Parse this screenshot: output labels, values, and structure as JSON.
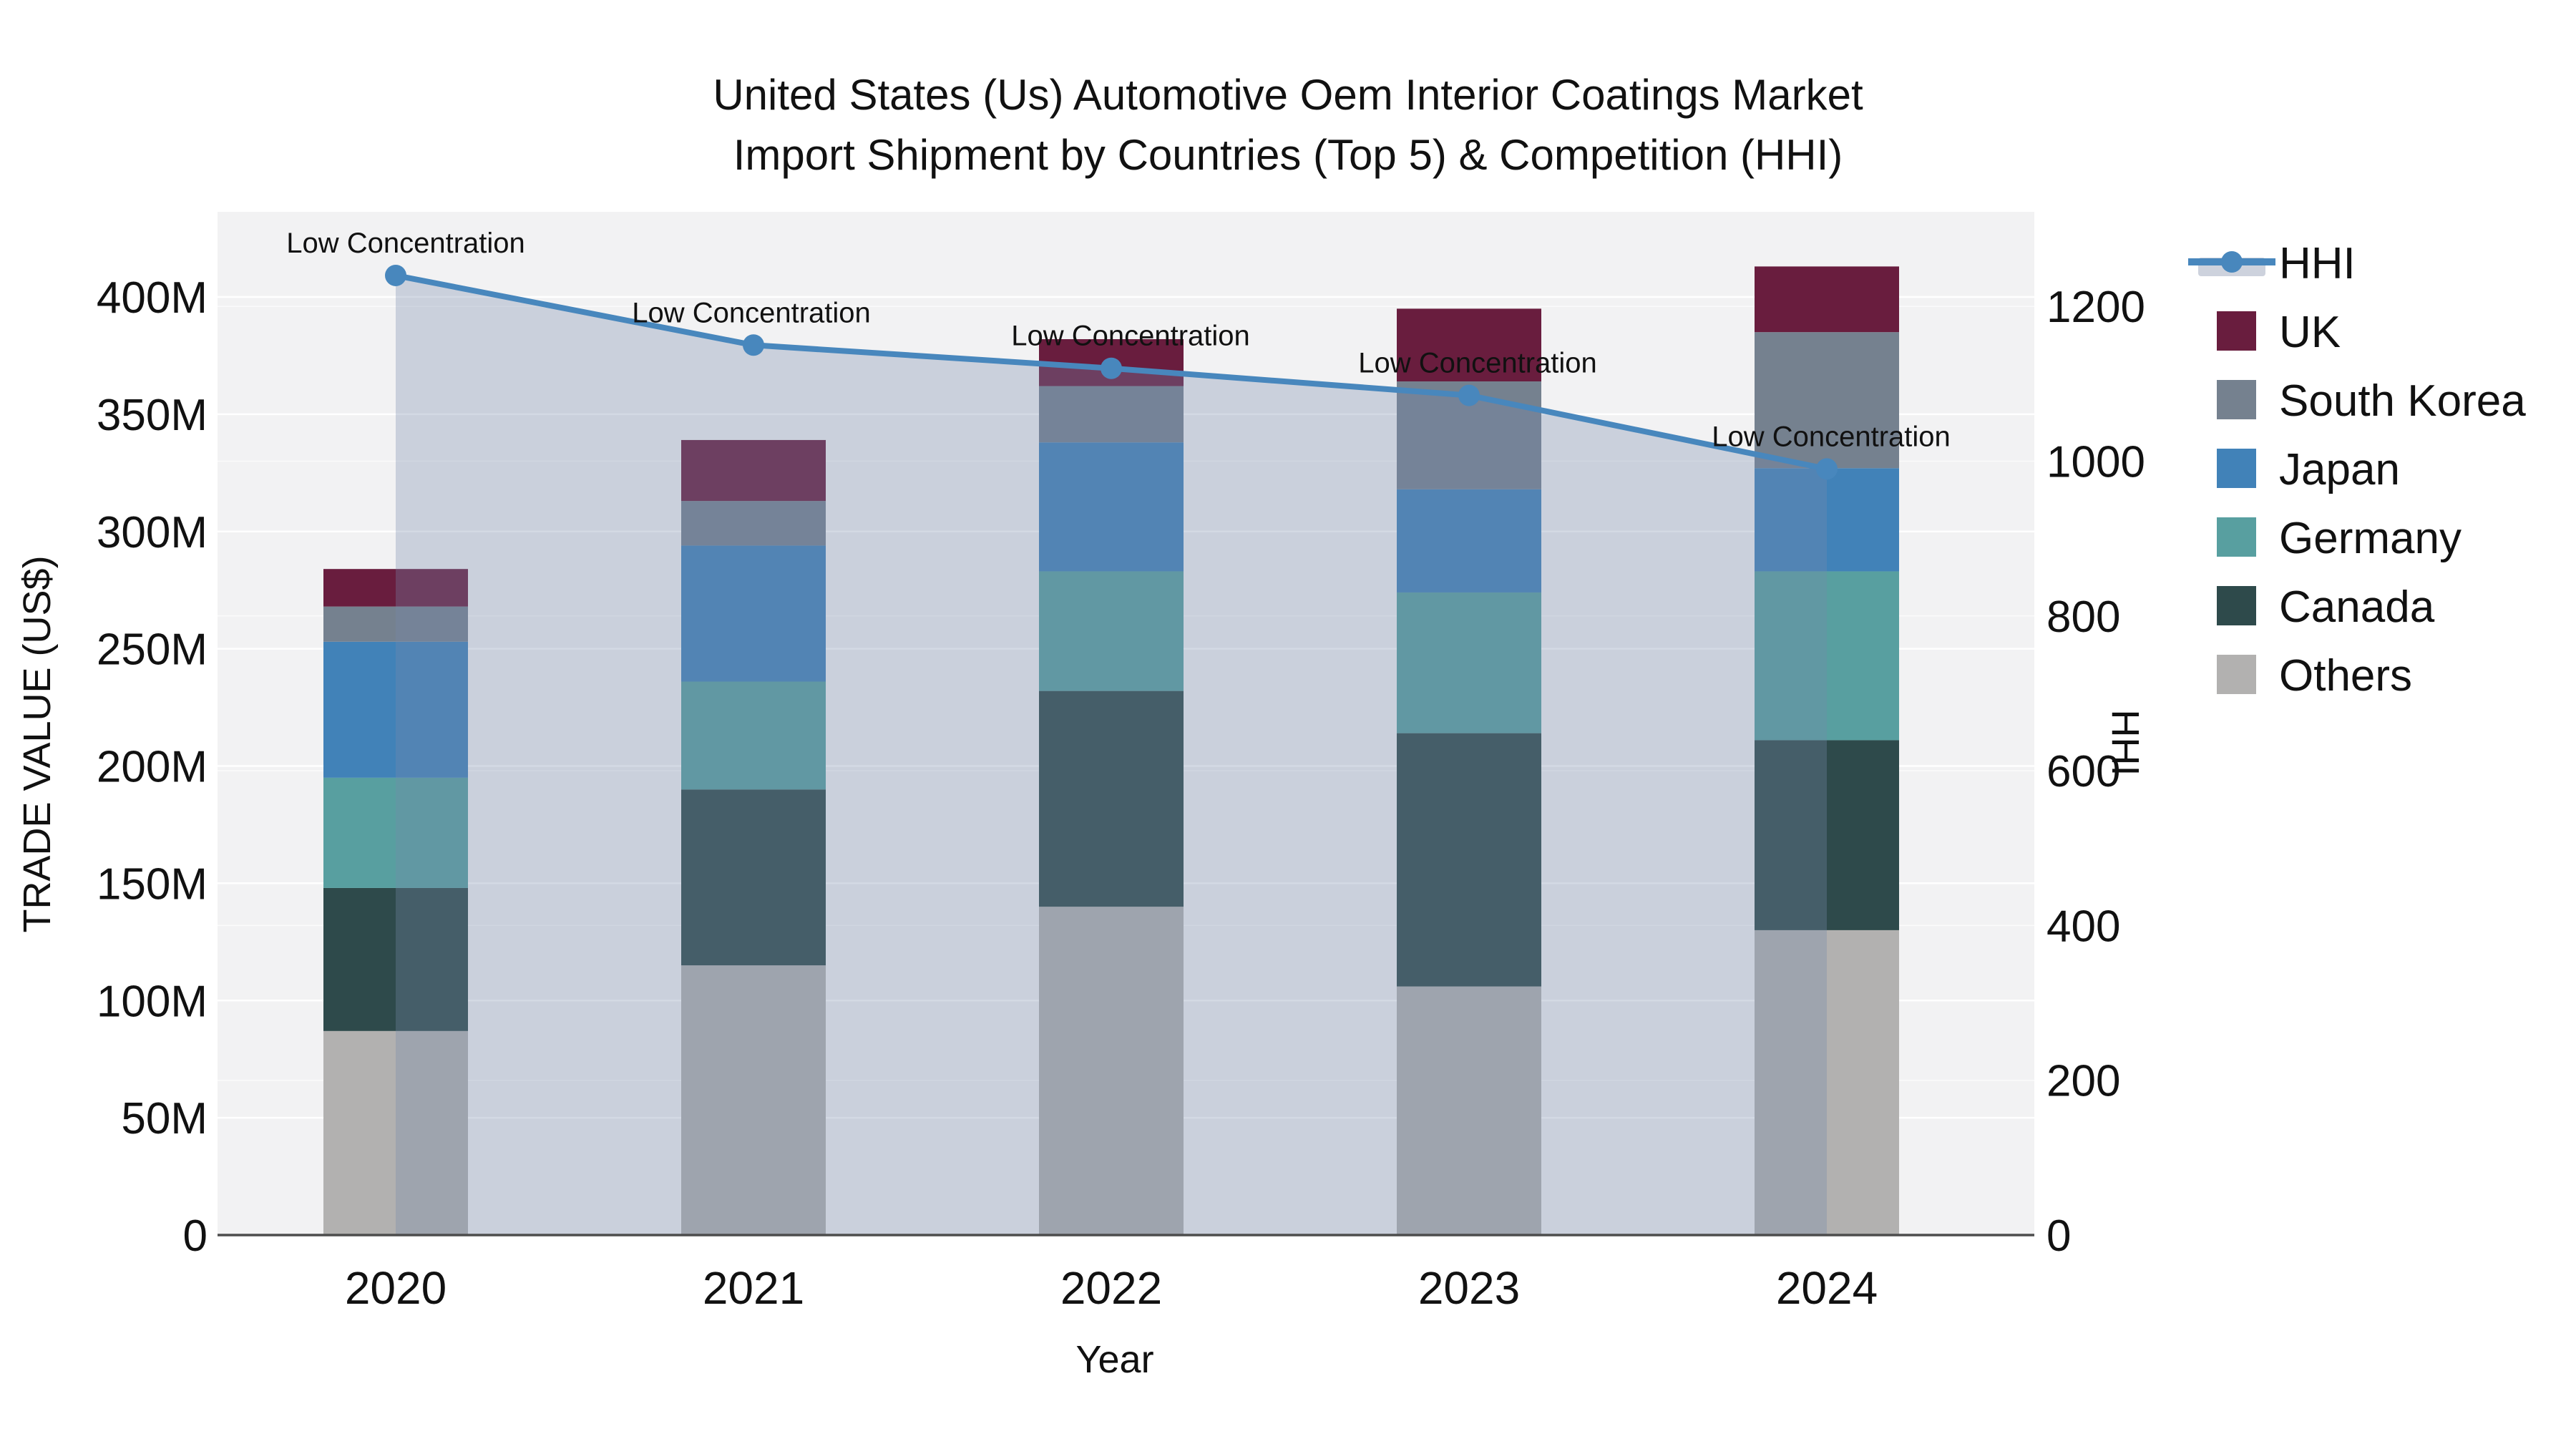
{
  "title": {
    "line1": "United States (Us) Automotive Oem Interior Coatings Market",
    "line2": "Import Shipment by Countries (Top 5) & Competition (HHI)"
  },
  "axes": {
    "x": {
      "label": "Year",
      "categories": [
        "2020",
        "2021",
        "2022",
        "2023",
        "2024"
      ]
    },
    "y_left": {
      "label": "TRADE VALUE (US$)",
      "ticks": [
        {
          "label": "0",
          "value": 0
        },
        {
          "label": "50M",
          "value": 50
        },
        {
          "label": "100M",
          "value": 100
        },
        {
          "label": "150M",
          "value": 150
        },
        {
          "label": "200M",
          "value": 200
        },
        {
          "label": "250M",
          "value": 250
        },
        {
          "label": "300M",
          "value": 300
        },
        {
          "label": "350M",
          "value": 350
        },
        {
          "label": "400M",
          "value": 400
        }
      ]
    },
    "y_right": {
      "label": "HHI",
      "ticks": [
        {
          "label": "0",
          "value": 0
        },
        {
          "label": "200",
          "value": 200
        },
        {
          "label": "400",
          "value": 400
        },
        {
          "label": "600",
          "value": 600
        },
        {
          "label": "800",
          "value": 800
        },
        {
          "label": "1000",
          "value": 1000
        },
        {
          "label": "1200",
          "value": 1200
        }
      ]
    }
  },
  "legend": {
    "items": [
      {
        "label": "HHI",
        "type": "line",
        "color": "#4887BD"
      },
      {
        "label": "UK",
        "type": "swatch",
        "color": "#691D3E"
      },
      {
        "label": "South Korea",
        "type": "swatch",
        "color": "#75818F"
      },
      {
        "label": "Japan",
        "type": "swatch",
        "color": "#4182B8"
      },
      {
        "label": "Germany",
        "type": "swatch",
        "color": "#589FA0"
      },
      {
        "label": "Canada",
        "type": "swatch",
        "color": "#2E4A4B"
      },
      {
        "label": "Others",
        "type": "swatch",
        "color": "#B2B1B0"
      }
    ]
  },
  "annotation_text": "Low Concentration",
  "colors": {
    "plot_bg": "#F2F2F3",
    "grid_major": "#FFFFFF",
    "axis_line": "#4D4D4D",
    "hhi_line": "#4887BD",
    "hhi_area": "rgba(118,136,170,0.32)"
  },
  "chart_data": {
    "type": "bar",
    "subtype": "stacked-bars-with-line-overlay",
    "title": "United States (Us) Automotive Oem Interior Coatings Market Import Shipment by Countries (Top 5) & Competition (HHI)",
    "xlabel": "Year",
    "ylabel": "TRADE VALUE (US$)",
    "ylabel_right": "HHI",
    "categories": [
      "2020",
      "2021",
      "2022",
      "2023",
      "2024"
    ],
    "units": "US$ millions (left axis), HHI index (right axis)",
    "bar_series": [
      {
        "name": "Others",
        "color": "#B2B1B0",
        "values": [
          87,
          115,
          140,
          106,
          130
        ]
      },
      {
        "name": "Canada",
        "color": "#2E4A4B",
        "values": [
          61,
          75,
          92,
          108,
          81
        ]
      },
      {
        "name": "Germany",
        "color": "#589FA0",
        "values": [
          47,
          46,
          51,
          60,
          72
        ]
      },
      {
        "name": "Japan",
        "color": "#4182B8",
        "values": [
          58,
          58,
          55,
          44,
          44
        ]
      },
      {
        "name": "South Korea",
        "color": "#75818F",
        "values": [
          15,
          19,
          24,
          46,
          58
        ]
      },
      {
        "name": "UK",
        "color": "#691D3E",
        "values": [
          16,
          26,
          20,
          31,
          28
        ]
      }
    ],
    "bar_totals": [
      284,
      339,
      382,
      395,
      413
    ],
    "line_series": {
      "name": "HHI",
      "color": "#4887BD",
      "values": [
        1240,
        1150,
        1120,
        1085,
        990
      ],
      "area_fill": true,
      "point_annotations": [
        "Low Concentration",
        "Low Concentration",
        "Low Concentration",
        "Low Concentration",
        "Low Concentration"
      ]
    },
    "ylim_left": [
      0,
      436
    ],
    "ylim_right": [
      0,
      1322
    ],
    "grid": true,
    "legend_position": "right"
  }
}
